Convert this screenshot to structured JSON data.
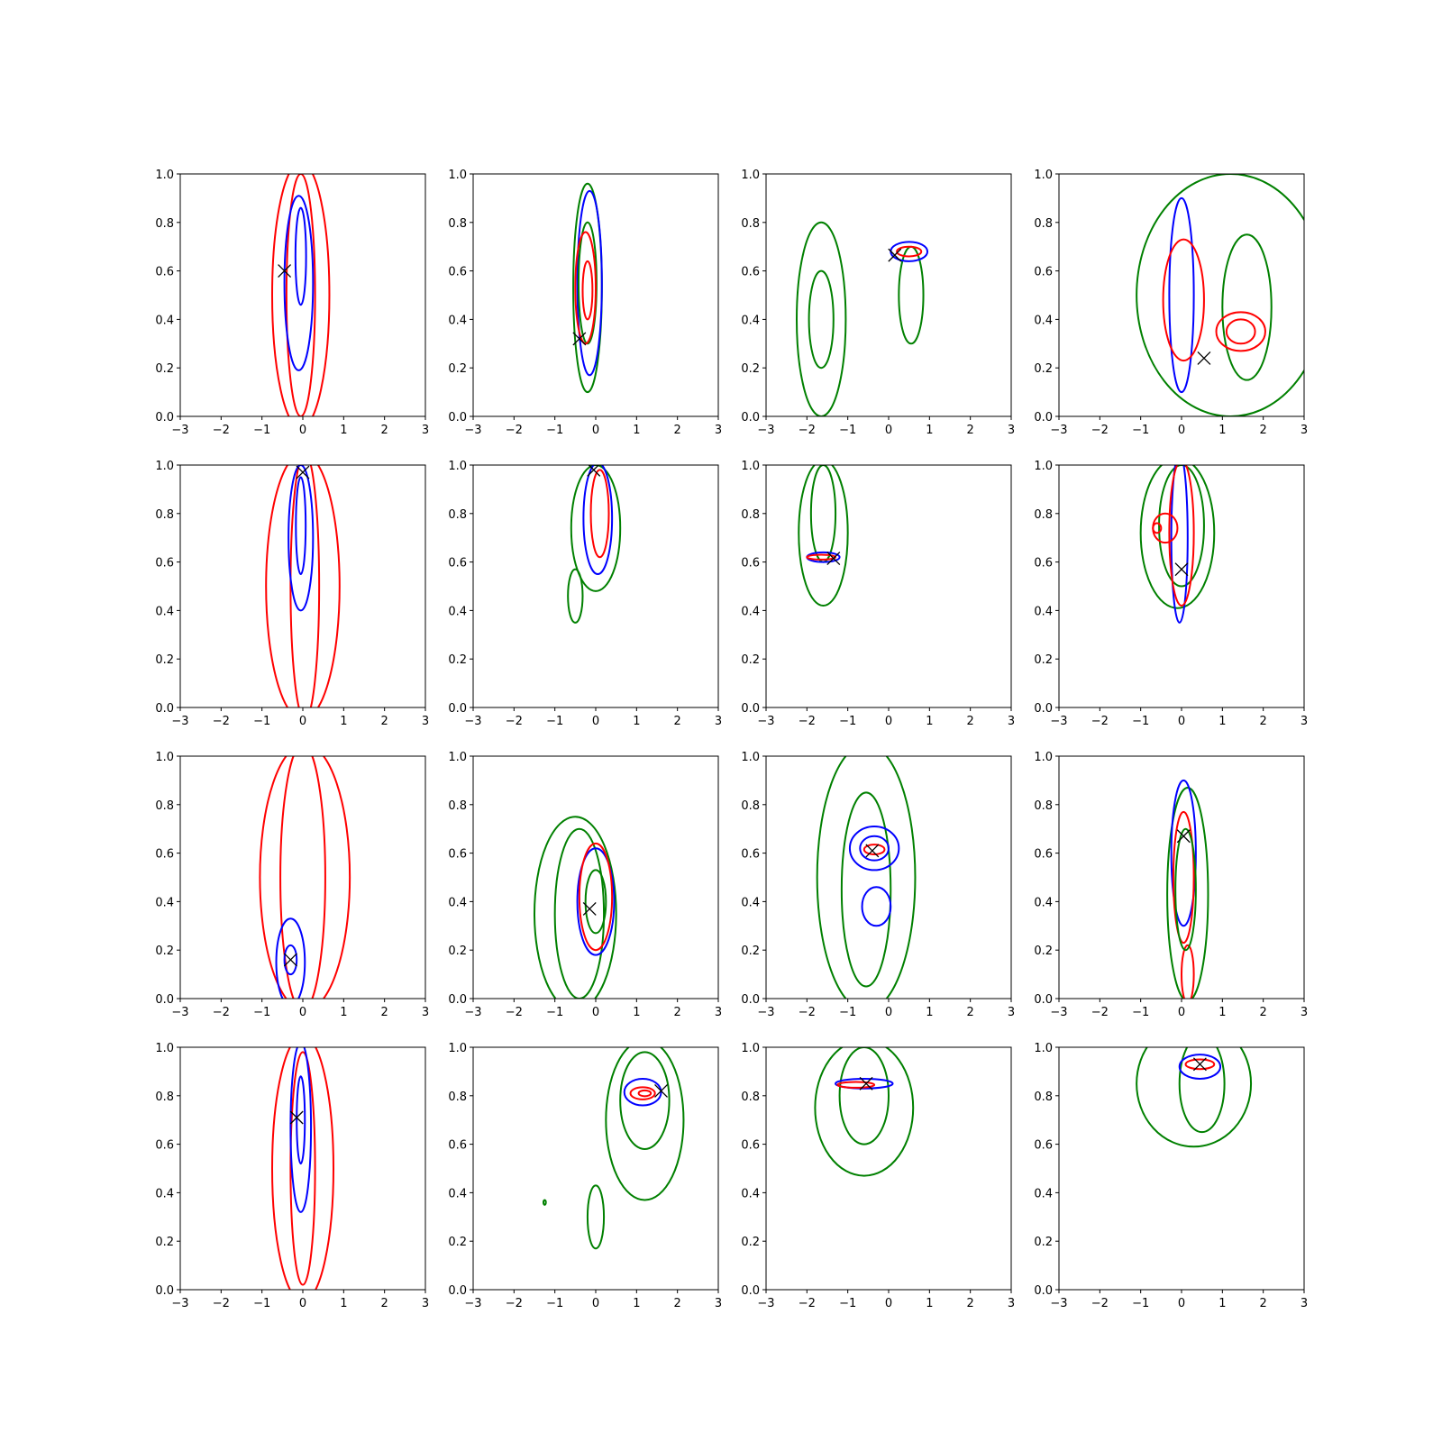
{
  "colors": {
    "red": "#ff0000",
    "blue": "#0000ff",
    "green": "#008000",
    "marker": "#000000",
    "axes": "#000000"
  },
  "chart_data": {
    "type": "contour",
    "grid": "4x4",
    "grid_lines": false,
    "legend": "none",
    "xlim": [
      -3,
      3
    ],
    "ylim": [
      0,
      1
    ],
    "xticks": [
      "−3",
      "−2",
      "−1",
      "0",
      "1",
      "2",
      "3"
    ],
    "yticks": [
      "0.0",
      "0.2",
      "0.4",
      "0.6",
      "0.8",
      "1.0"
    ],
    "panels": [
      {
        "marker": [
          -0.45,
          0.6
        ],
        "contours": [
          {
            "color": "red",
            "cx": -0.05,
            "cy": 0.5,
            "rx": 0.7,
            "ry": 0.55
          },
          {
            "color": "red",
            "cx": -0.05,
            "cy": 0.5,
            "rx": 0.35,
            "ry": 0.5
          },
          {
            "color": "blue",
            "cx": -0.1,
            "cy": 0.55,
            "rx": 0.35,
            "ry": 0.36
          },
          {
            "color": "blue",
            "cx": -0.05,
            "cy": 0.66,
            "rx": 0.13,
            "ry": 0.2
          }
        ]
      },
      {
        "marker": [
          -0.4,
          0.32
        ],
        "contours": [
          {
            "color": "green",
            "cx": -0.2,
            "cy": 0.53,
            "rx": 0.35,
            "ry": 0.43
          },
          {
            "color": "blue",
            "cx": -0.15,
            "cy": 0.55,
            "rx": 0.3,
            "ry": 0.38
          },
          {
            "color": "green",
            "cx": -0.2,
            "cy": 0.55,
            "rx": 0.22,
            "ry": 0.25
          },
          {
            "color": "red",
            "cx": -0.25,
            "cy": 0.53,
            "rx": 0.25,
            "ry": 0.23
          },
          {
            "color": "red",
            "cx": -0.2,
            "cy": 0.52,
            "rx": 0.12,
            "ry": 0.12
          }
        ]
      },
      {
        "marker": [
          0.15,
          0.665
        ],
        "contours": [
          {
            "color": "green",
            "cx": -1.65,
            "cy": 0.4,
            "rx": 0.6,
            "ry": 0.4
          },
          {
            "color": "green",
            "cx": -1.65,
            "cy": 0.4,
            "rx": 0.3,
            "ry": 0.2
          },
          {
            "color": "green",
            "cx": 0.55,
            "cy": 0.5,
            "rx": 0.3,
            "ry": 0.2
          },
          {
            "color": "blue",
            "cx": 0.5,
            "cy": 0.68,
            "rx": 0.45,
            "ry": 0.04
          },
          {
            "color": "red",
            "cx": 0.5,
            "cy": 0.68,
            "rx": 0.3,
            "ry": 0.02
          }
        ]
      },
      {
        "marker": [
          0.55,
          0.24
        ],
        "contours": [
          {
            "color": "green",
            "cx": 1.2,
            "cy": 0.5,
            "rx": 2.3,
            "ry": 0.5
          },
          {
            "color": "green",
            "cx": 1.6,
            "cy": 0.45,
            "rx": 0.6,
            "ry": 0.3
          },
          {
            "color": "blue",
            "cx": 0.0,
            "cy": 0.5,
            "rx": 0.3,
            "ry": 0.4
          },
          {
            "color": "red",
            "cx": 0.05,
            "cy": 0.48,
            "rx": 0.5,
            "ry": 0.25
          },
          {
            "color": "red",
            "cx": 1.45,
            "cy": 0.35,
            "rx": 0.6,
            "ry": 0.08
          },
          {
            "color": "red",
            "cx": 1.45,
            "cy": 0.35,
            "rx": 0.35,
            "ry": 0.05
          }
        ]
      },
      {
        "marker": [
          0.0,
          0.97
        ],
        "contours": [
          {
            "color": "red",
            "cx": 0.0,
            "cy": 0.5,
            "rx": 0.9,
            "ry": 0.55
          },
          {
            "color": "red",
            "cx": 0.05,
            "cy": 0.5,
            "rx": 0.35,
            "ry": 0.55
          },
          {
            "color": "blue",
            "cx": -0.05,
            "cy": 0.7,
            "rx": 0.3,
            "ry": 0.3
          },
          {
            "color": "blue",
            "cx": -0.05,
            "cy": 0.75,
            "rx": 0.12,
            "ry": 0.2
          }
        ]
      },
      {
        "marker": [
          -0.05,
          0.98
        ],
        "contours": [
          {
            "color": "green",
            "cx": 0.0,
            "cy": 0.74,
            "rx": 0.6,
            "ry": 0.26
          },
          {
            "color": "green",
            "cx": -0.5,
            "cy": 0.46,
            "rx": 0.18,
            "ry": 0.11
          },
          {
            "color": "blue",
            "cx": 0.05,
            "cy": 0.78,
            "rx": 0.35,
            "ry": 0.23
          },
          {
            "color": "red",
            "cx": 0.1,
            "cy": 0.8,
            "rx": 0.22,
            "ry": 0.18
          }
        ]
      },
      {
        "marker": [
          -1.35,
          0.615
        ],
        "contours": [
          {
            "color": "green",
            "cx": -1.6,
            "cy": 0.72,
            "rx": 0.6,
            "ry": 0.3
          },
          {
            "color": "green",
            "cx": -1.6,
            "cy": 0.8,
            "rx": 0.3,
            "ry": 0.2
          },
          {
            "color": "blue",
            "cx": -1.6,
            "cy": 0.62,
            "rx": 0.4,
            "ry": 0.02
          },
          {
            "color": "red",
            "cx": -1.65,
            "cy": 0.62,
            "rx": 0.35,
            "ry": 0.01
          }
        ]
      },
      {
        "marker": [
          0.0,
          0.57
        ],
        "contours": [
          {
            "color": "green",
            "cx": -0.1,
            "cy": 0.72,
            "rx": 0.9,
            "ry": 0.31
          },
          {
            "color": "green",
            "cx": 0.0,
            "cy": 0.75,
            "rx": 0.55,
            "ry": 0.25
          },
          {
            "color": "blue",
            "cx": -0.05,
            "cy": 0.7,
            "rx": 0.2,
            "ry": 0.35
          },
          {
            "color": "red",
            "cx": 0.0,
            "cy": 0.72,
            "rx": 0.3,
            "ry": 0.3
          },
          {
            "color": "red",
            "cx": -0.4,
            "cy": 0.74,
            "rx": 0.3,
            "ry": 0.06
          },
          {
            "color": "red",
            "cx": -0.6,
            "cy": 0.74,
            "rx": 0.1,
            "ry": 0.02
          }
        ]
      },
      {
        "marker": [
          -0.3,
          0.16
        ],
        "contours": [
          {
            "color": "red",
            "cx": 0.05,
            "cy": 0.5,
            "rx": 1.1,
            "ry": 0.55
          },
          {
            "color": "red",
            "cx": 0.0,
            "cy": 0.5,
            "rx": 0.55,
            "ry": 0.55
          },
          {
            "color": "blue",
            "cx": -0.3,
            "cy": 0.15,
            "rx": 0.35,
            "ry": 0.18
          },
          {
            "color": "blue",
            "cx": -0.3,
            "cy": 0.16,
            "rx": 0.15,
            "ry": 0.06
          }
        ]
      },
      {
        "marker": [
          -0.15,
          0.37
        ],
        "contours": [
          {
            "color": "green",
            "cx": -0.5,
            "cy": 0.35,
            "rx": 1.0,
            "ry": 0.4
          },
          {
            "color": "green",
            "cx": -0.4,
            "cy": 0.35,
            "rx": 0.6,
            "ry": 0.35
          },
          {
            "color": "blue",
            "cx": 0.0,
            "cy": 0.4,
            "rx": 0.45,
            "ry": 0.22
          },
          {
            "color": "red",
            "cx": 0.0,
            "cy": 0.42,
            "rx": 0.4,
            "ry": 0.22
          },
          {
            "color": "green",
            "cx": 0.0,
            "cy": 0.4,
            "rx": 0.25,
            "ry": 0.13
          }
        ]
      },
      {
        "marker": [
          -0.4,
          0.61
        ],
        "contours": [
          {
            "color": "green",
            "cx": -0.55,
            "cy": 0.5,
            "rx": 1.2,
            "ry": 0.55
          },
          {
            "color": "green",
            "cx": -0.55,
            "cy": 0.45,
            "rx": 0.6,
            "ry": 0.4
          },
          {
            "color": "blue",
            "cx": -0.35,
            "cy": 0.62,
            "rx": 0.6,
            "ry": 0.09
          },
          {
            "color": "blue",
            "cx": -0.35,
            "cy": 0.62,
            "rx": 0.35,
            "ry": 0.05
          },
          {
            "color": "blue",
            "cx": -0.3,
            "cy": 0.38,
            "rx": 0.35,
            "ry": 0.08
          },
          {
            "color": "red",
            "cx": -0.35,
            "cy": 0.615,
            "rx": 0.25,
            "ry": 0.02
          }
        ]
      },
      {
        "marker": [
          0.05,
          0.67
        ],
        "contours": [
          {
            "color": "green",
            "cx": 0.15,
            "cy": 0.43,
            "rx": 0.5,
            "ry": 0.44
          },
          {
            "color": "blue",
            "cx": 0.05,
            "cy": 0.6,
            "rx": 0.3,
            "ry": 0.3
          },
          {
            "color": "red",
            "cx": 0.05,
            "cy": 0.5,
            "rx": 0.25,
            "ry": 0.27
          },
          {
            "color": "red",
            "cx": 0.15,
            "cy": 0.1,
            "rx": 0.15,
            "ry": 0.12
          },
          {
            "color": "green",
            "cx": 0.1,
            "cy": 0.45,
            "rx": 0.25,
            "ry": 0.25
          }
        ]
      },
      {
        "marker": [
          -0.15,
          0.71
        ],
        "contours": [
          {
            "color": "red",
            "cx": 0.0,
            "cy": 0.5,
            "rx": 0.75,
            "ry": 0.55
          },
          {
            "color": "red",
            "cx": 0.0,
            "cy": 0.5,
            "rx": 0.3,
            "ry": 0.48
          },
          {
            "color": "blue",
            "cx": -0.05,
            "cy": 0.67,
            "rx": 0.25,
            "ry": 0.35
          },
          {
            "color": "blue",
            "cx": -0.05,
            "cy": 0.7,
            "rx": 0.1,
            "ry": 0.18
          }
        ]
      },
      {
        "marker": [
          1.6,
          0.82
        ],
        "contours": [
          {
            "color": "green",
            "cx": 1.2,
            "cy": 0.7,
            "rx": 0.95,
            "ry": 0.33
          },
          {
            "color": "green",
            "cx": 1.2,
            "cy": 0.78,
            "rx": 0.6,
            "ry": 0.2
          },
          {
            "color": "green",
            "cx": 0.0,
            "cy": 0.3,
            "rx": 0.2,
            "ry": 0.13
          },
          {
            "color": "green",
            "cx": -1.25,
            "cy": 0.36,
            "rx": 0.03,
            "ry": 0.01
          },
          {
            "color": "blue",
            "cx": 1.15,
            "cy": 0.815,
            "rx": 0.45,
            "ry": 0.055
          },
          {
            "color": "red",
            "cx": 1.15,
            "cy": 0.81,
            "rx": 0.3,
            "ry": 0.025
          },
          {
            "color": "red",
            "cx": 1.2,
            "cy": 0.81,
            "rx": 0.15,
            "ry": 0.012
          }
        ]
      },
      {
        "marker": [
          -0.55,
          0.85
        ],
        "contours": [
          {
            "color": "green",
            "cx": -0.6,
            "cy": 0.75,
            "rx": 1.2,
            "ry": 0.28
          },
          {
            "color": "green",
            "cx": -0.6,
            "cy": 0.8,
            "rx": 0.6,
            "ry": 0.2
          },
          {
            "color": "blue",
            "cx": -0.6,
            "cy": 0.85,
            "rx": 0.7,
            "ry": 0.02
          },
          {
            "color": "red",
            "cx": -0.8,
            "cy": 0.845,
            "rx": 0.45,
            "ry": 0.012
          }
        ]
      },
      {
        "marker": [
          0.45,
          0.93
        ],
        "contours": [
          {
            "color": "green",
            "cx": 0.3,
            "cy": 0.85,
            "rx": 1.4,
            "ry": 0.26
          },
          {
            "color": "green",
            "cx": 0.5,
            "cy": 0.85,
            "rx": 0.55,
            "ry": 0.2
          },
          {
            "color": "blue",
            "cx": 0.45,
            "cy": 0.92,
            "rx": 0.5,
            "ry": 0.05
          },
          {
            "color": "red",
            "cx": 0.45,
            "cy": 0.93,
            "rx": 0.35,
            "ry": 0.02
          }
        ]
      }
    ]
  }
}
